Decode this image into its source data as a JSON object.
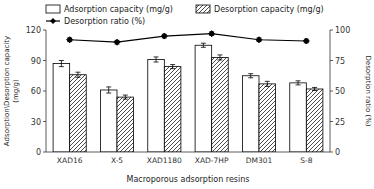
{
  "chart_data": {
    "type": "bar",
    "categories": [
      "XAD16",
      "X-5",
      "XAD1180",
      "XAD-7HP",
      "DM301",
      "S-8"
    ],
    "xlabel": "Macroporous adsorption resins",
    "ylabel": "Adsorption\\Desorption capacity\n(mg/g)",
    "y2label": "Desorption ratio (%)",
    "ylim": [
      0,
      120
    ],
    "yticks": [
      0,
      30,
      60,
      90,
      120
    ],
    "y2lim": [
      0,
      100
    ],
    "y2ticks": [
      0,
      25,
      50,
      75,
      100
    ],
    "grid": false,
    "legend": "top",
    "series": [
      {
        "name": "Adsorption capacity (mg/g)",
        "color": "#ffffff",
        "values": [
          87,
          61,
          91,
          105,
          75,
          68
        ],
        "errors": [
          3.0,
          3.0,
          2.5,
          2.0,
          2.0,
          2.0
        ]
      },
      {
        "name": "Desorption capacity (mg/g)",
        "color": "#ffffff",
        "values": [
          76,
          54,
          84,
          93,
          67,
          62
        ],
        "errors": [
          2.5,
          2.0,
          2.0,
          2.5,
          2.5,
          1.5
        ]
      },
      {
        "name": "Desorption ratio (%)",
        "type": "line",
        "axis": "y2",
        "color": "#000000",
        "marker": "diamond",
        "values": [
          92,
          90,
          95,
          97,
          92,
          91
        ],
        "errors": [
          1.5,
          1.5,
          1.5,
          1.5,
          1.5,
          1.5
        ]
      }
    ]
  }
}
